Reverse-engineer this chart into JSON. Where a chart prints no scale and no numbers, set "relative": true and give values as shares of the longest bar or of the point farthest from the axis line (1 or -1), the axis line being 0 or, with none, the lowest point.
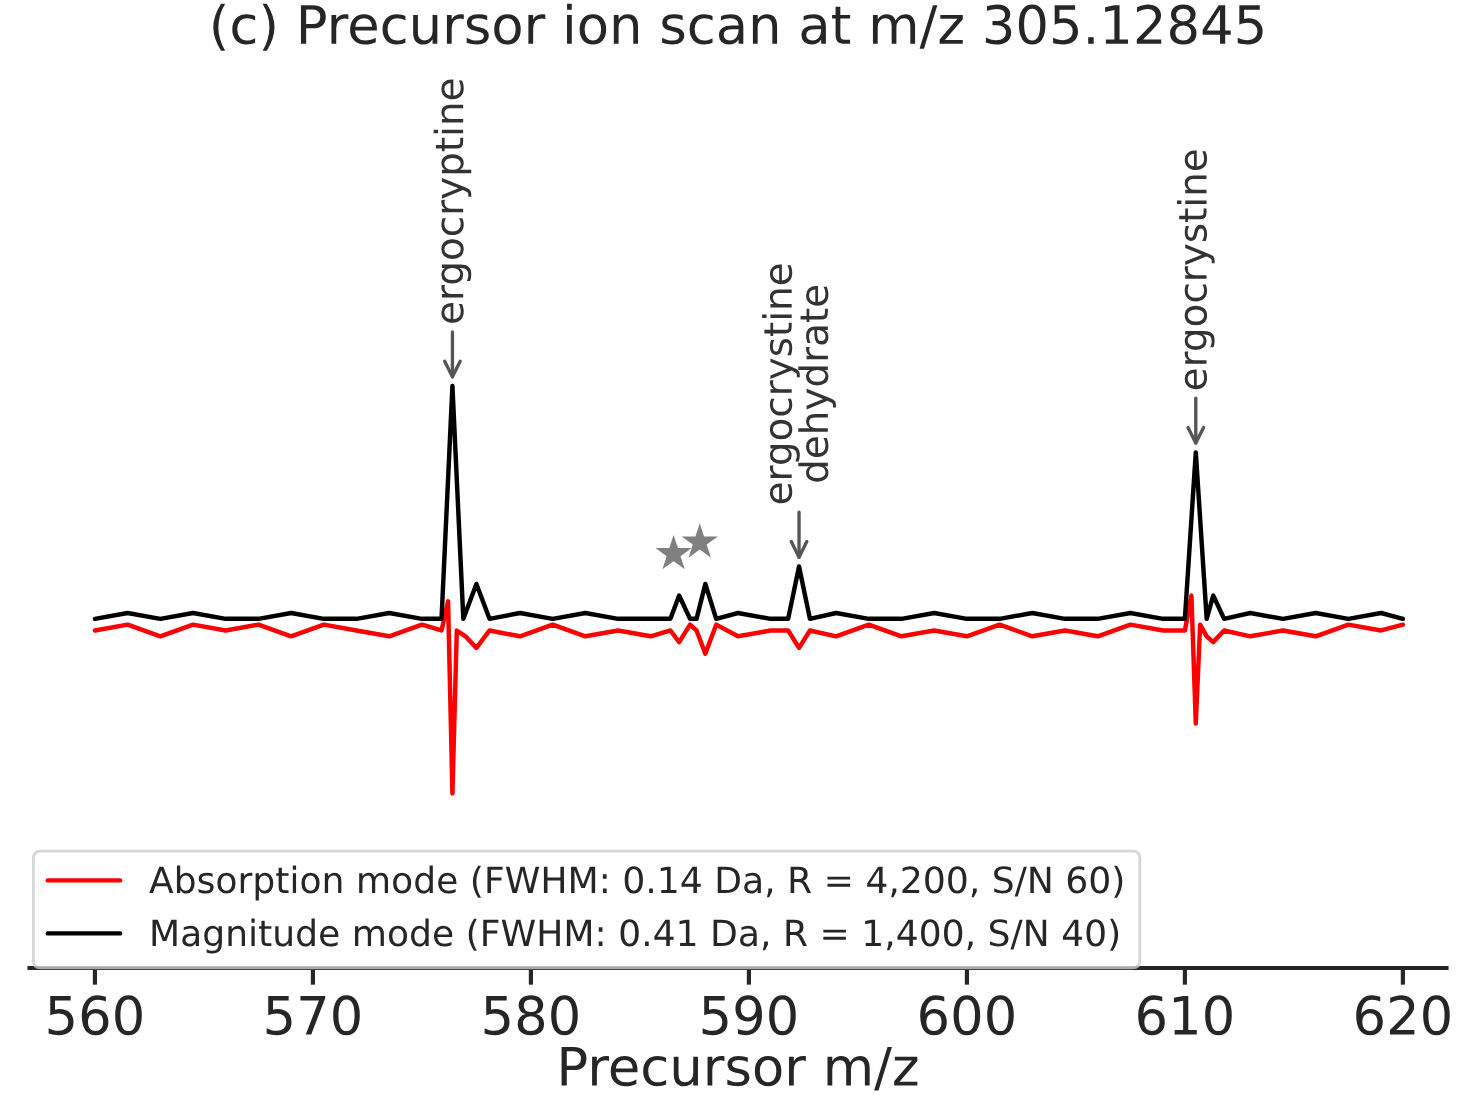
{
  "chart_data": {
    "type": "line",
    "relative": true,
    "title": "(c) Precursor ion scan at m/z 305.12845",
    "xlabel": "Precursor m/z",
    "xlim": [
      557,
      622
    ],
    "xticks": [
      560,
      570,
      580,
      590,
      600,
      610,
      620
    ],
    "tick_labels": "x",
    "grid": false,
    "legend": "bottom left",
    "line_style": "solid",
    "marker": "none",
    "series": [
      {
        "name": "Absorption mode (FWHM: 0.14 Da, R = 4,200, S/N 60)",
        "color": "#ff0000",
        "x": [
          560,
          561.5,
          563,
          564.5,
          566,
          567.5,
          569,
          570.5,
          572,
          573.5,
          575,
          575.9,
          576.2,
          576.4,
          576.6,
          577.0,
          577.5,
          578.1,
          579.5,
          581,
          582.5,
          584,
          585.5,
          586.4,
          586.8,
          587.3,
          587.6,
          588.0,
          588.5,
          589.5,
          591,
          591.8,
          592.3,
          592.8,
          594,
          595.5,
          597,
          598.5,
          600,
          601.5,
          603,
          604.5,
          606,
          607.5,
          609,
          610.0,
          610.3,
          610.5,
          610.7,
          611.0,
          611.3,
          611.8,
          613,
          614.5,
          616,
          617.5,
          619,
          620
        ],
        "values": [
          0.58,
          0.59,
          0.57,
          0.59,
          0.58,
          0.59,
          0.57,
          0.59,
          0.58,
          0.57,
          0.59,
          0.58,
          0.63,
          0.3,
          0.58,
          0.57,
          0.55,
          0.58,
          0.57,
          0.59,
          0.57,
          0.58,
          0.57,
          0.58,
          0.56,
          0.59,
          0.58,
          0.54,
          0.59,
          0.57,
          0.58,
          0.58,
          0.55,
          0.58,
          0.57,
          0.59,
          0.57,
          0.58,
          0.57,
          0.59,
          0.57,
          0.58,
          0.57,
          0.59,
          0.58,
          0.58,
          0.64,
          0.42,
          0.59,
          0.57,
          0.56,
          0.58,
          0.57,
          0.58,
          0.57,
          0.59,
          0.58,
          0.59
        ]
      },
      {
        "name": "Magnitude mode (FWHM: 0.41 Da, R = 1,400, S/N 40)",
        "color": "#000000",
        "x": [
          560,
          561.5,
          563,
          564.5,
          566,
          567.5,
          569,
          570.5,
          572,
          573.5,
          575,
          575.9,
          576.4,
          576.9,
          577.5,
          578.1,
          579.5,
          581,
          582.5,
          584,
          585.5,
          586.4,
          586.8,
          587.3,
          587.6,
          588.0,
          588.5,
          589.5,
          591,
          591.8,
          592.3,
          592.8,
          594,
          595.5,
          597,
          598.5,
          600,
          601.5,
          603,
          604.5,
          606,
          607.5,
          609,
          610.0,
          610.5,
          611.0,
          611.3,
          611.8,
          613,
          614.5,
          616,
          617.5,
          619,
          620
        ],
        "values": [
          0.6,
          0.61,
          0.6,
          0.61,
          0.6,
          0.6,
          0.61,
          0.6,
          0.6,
          0.61,
          0.6,
          0.6,
          1.0,
          0.6,
          0.66,
          0.6,
          0.61,
          0.6,
          0.61,
          0.6,
          0.6,
          0.6,
          0.64,
          0.6,
          0.6,
          0.66,
          0.6,
          0.61,
          0.6,
          0.6,
          0.69,
          0.6,
          0.61,
          0.6,
          0.6,
          0.61,
          0.6,
          0.6,
          0.61,
          0.6,
          0.6,
          0.61,
          0.6,
          0.6,
          0.886,
          0.6,
          0.64,
          0.6,
          0.61,
          0.6,
          0.61,
          0.6,
          0.61,
          0.6
        ]
      }
    ],
    "annotations": [
      {
        "text": "ergocryptine",
        "x": 576.4,
        "y": 1.0
      },
      {
        "text": "ergocrystine\ndehydrate",
        "x": 592.3,
        "y": 0.69
      },
      {
        "text": "ergocrystine",
        "x": 610.5,
        "y": 0.886
      },
      {
        "text": "★",
        "x": 586.8,
        "y": 0.64
      },
      {
        "text": "★",
        "x": 588.0,
        "y": 0.66
      }
    ]
  }
}
